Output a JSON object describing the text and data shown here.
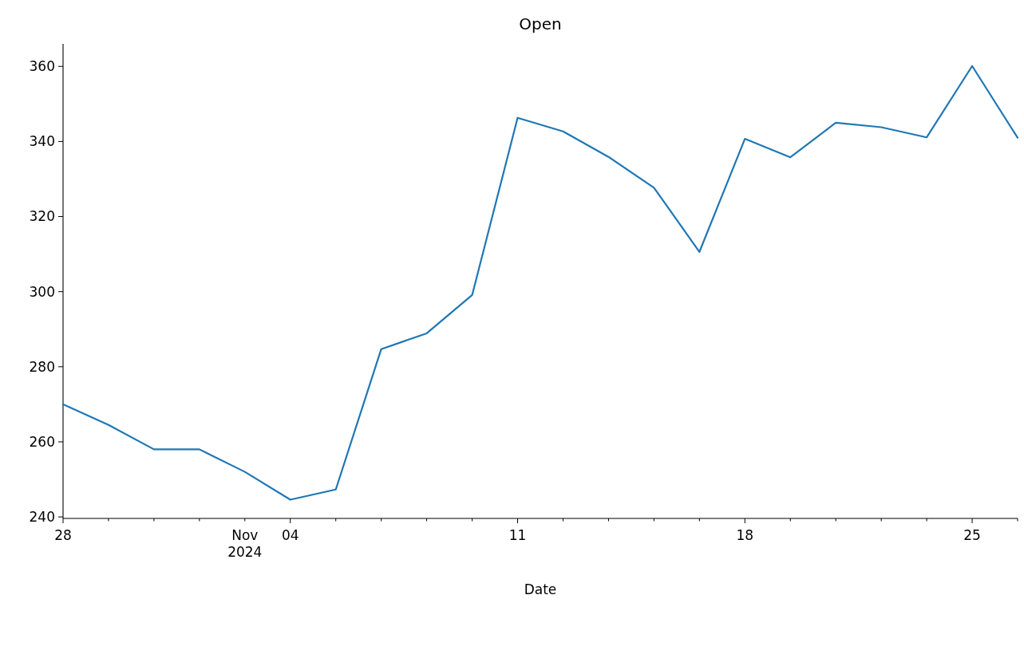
{
  "chart_data": {
    "type": "line",
    "title": "Open",
    "xlabel": "Date",
    "categories": [
      "28",
      null,
      null,
      null,
      "Nov\n2024",
      "04",
      null,
      null,
      null,
      null,
      "11",
      null,
      null,
      null,
      null,
      "18",
      null,
      null,
      null,
      null,
      "25",
      null
    ],
    "series": [
      {
        "color": "#1f77b4",
        "values": [
          270.0,
          264.5,
          258.0,
          258.0,
          252.0,
          244.6,
          247.3,
          284.7,
          288.9,
          299.1,
          346.3,
          342.7,
          335.9,
          327.7,
          310.6,
          340.7,
          335.8,
          345.0,
          343.8,
          341.1,
          360.1,
          341.0
        ]
      }
    ],
    "ylim": [
      239.6,
      366
    ],
    "yticks": [
      240,
      260,
      280,
      300,
      320,
      340,
      360
    ],
    "grid": false
  }
}
